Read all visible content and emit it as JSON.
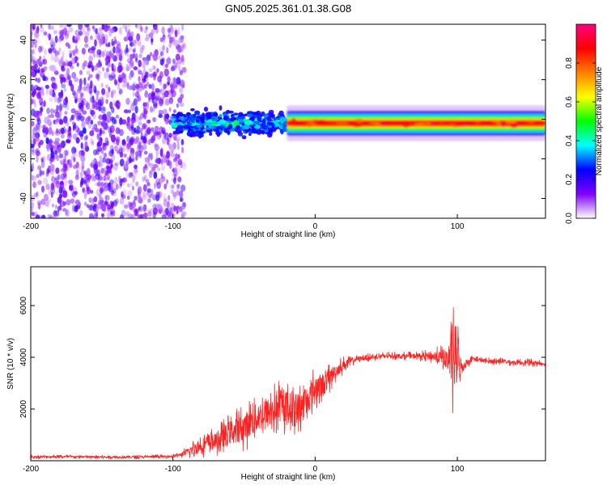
{
  "chart_data": [
    {
      "type": "heatmap",
      "title": "GN05.2025.361.01.38.G08",
      "xlabel": "Height of straight line (km)",
      "ylabel": "Frequency (Hz)",
      "xlim": [
        -200,
        162
      ],
      "ylim": [
        -50,
        48
      ],
      "x_ticks": [
        -200,
        -100,
        0,
        100
      ],
      "x_tick_labels": [
        "-200",
        "-100",
        "0",
        "100"
      ],
      "y_ticks": [
        -40,
        -20,
        0,
        20,
        40
      ],
      "y_tick_labels": [
        "-40",
        "-20",
        "0",
        "20",
        "40"
      ],
      "colorbar": {
        "label": "Normalized spectral amplitude",
        "range": [
          0,
          1
        ],
        "ticks": [
          0.0,
          0.2,
          0.4,
          0.6,
          0.8
        ],
        "tick_labels": [
          "0.0",
          "0.2",
          "0.4",
          "0.6",
          "0.8"
        ],
        "colors": [
          "#ffffff",
          "#8000ff",
          "#0000ff",
          "#00ffff",
          "#00ff00",
          "#ffff00",
          "#ff8000",
          "#ff0000",
          "#ff0080"
        ]
      },
      "regions": [
        {
          "x": [
            -200,
            -100
          ],
          "desc": "scattered noise across all frequencies, amplitude 0.05–0.3"
        },
        {
          "x": [
            -100,
            -20
          ],
          "freq_center": -2,
          "freq_spread": 5,
          "amplitude": [
            0.2,
            0.5
          ]
        },
        {
          "x": [
            -20,
            162
          ],
          "freq_center": -2,
          "freq_spread": 2,
          "amplitude": [
            0.7,
            1.0
          ]
        }
      ]
    },
    {
      "type": "line",
      "xlabel": "Height of straight line (km)",
      "ylabel": "SNR (10 * v/v)",
      "xlim": [
        -200,
        162
      ],
      "ylim": [
        0,
        7500
      ],
      "x_ticks": [
        -200,
        -100,
        0,
        100
      ],
      "x_tick_labels": [
        "-200",
        "-100",
        "0",
        "100"
      ],
      "y_ticks": [
        2000,
        4000,
        6000
      ],
      "y_tick_labels": [
        "2000",
        "4000",
        "6000"
      ],
      "series": [
        {
          "name": "SNR",
          "color": "#ff2020",
          "envelope": {
            "x": [
              -200,
              -180,
              -150,
              -120,
              -100,
              -95,
              -90,
              -85,
              -80,
              -75,
              -70,
              -65,
              -60,
              -55,
              -50,
              -45,
              -40,
              -35,
              -30,
              -25,
              -20,
              -15,
              -10,
              -5,
              0,
              5,
              10,
              15,
              20,
              25,
              30,
              40,
              50,
              60,
              70,
              80,
              90,
              95,
              97,
              100,
              103,
              110,
              120,
              130,
              140,
              150,
              162
            ],
            "mean": [
              150,
              160,
              140,
              150,
              170,
              230,
              330,
              450,
              600,
              700,
              750,
              900,
              1100,
              1200,
              1300,
              1500,
              1700,
              1800,
              1900,
              2100,
              2100,
              2000,
              2100,
              2400,
              2800,
              2900,
              3200,
              3500,
              3700,
              3850,
              3950,
              4000,
              4050,
              4050,
              4050,
              4050,
              4000,
              3900,
              4200,
              3900,
              3600,
              3950,
              3850,
              3850,
              3800,
              3800,
              3750
            ],
            "amp": [
              80,
              80,
              80,
              80,
              80,
              100,
              250,
              400,
              500,
              550,
              550,
              700,
              800,
              850,
              950,
              1000,
              1050,
              1050,
              1100,
              1100,
              1100,
              1050,
              1050,
              950,
              900,
              850,
              650,
              450,
              350,
              250,
              150,
              160,
              160,
              160,
              170,
              250,
              500,
              900,
              3400,
              1800,
              400,
              150,
              150,
              150,
              150,
              150,
              150
            ]
          }
        }
      ]
    }
  ]
}
